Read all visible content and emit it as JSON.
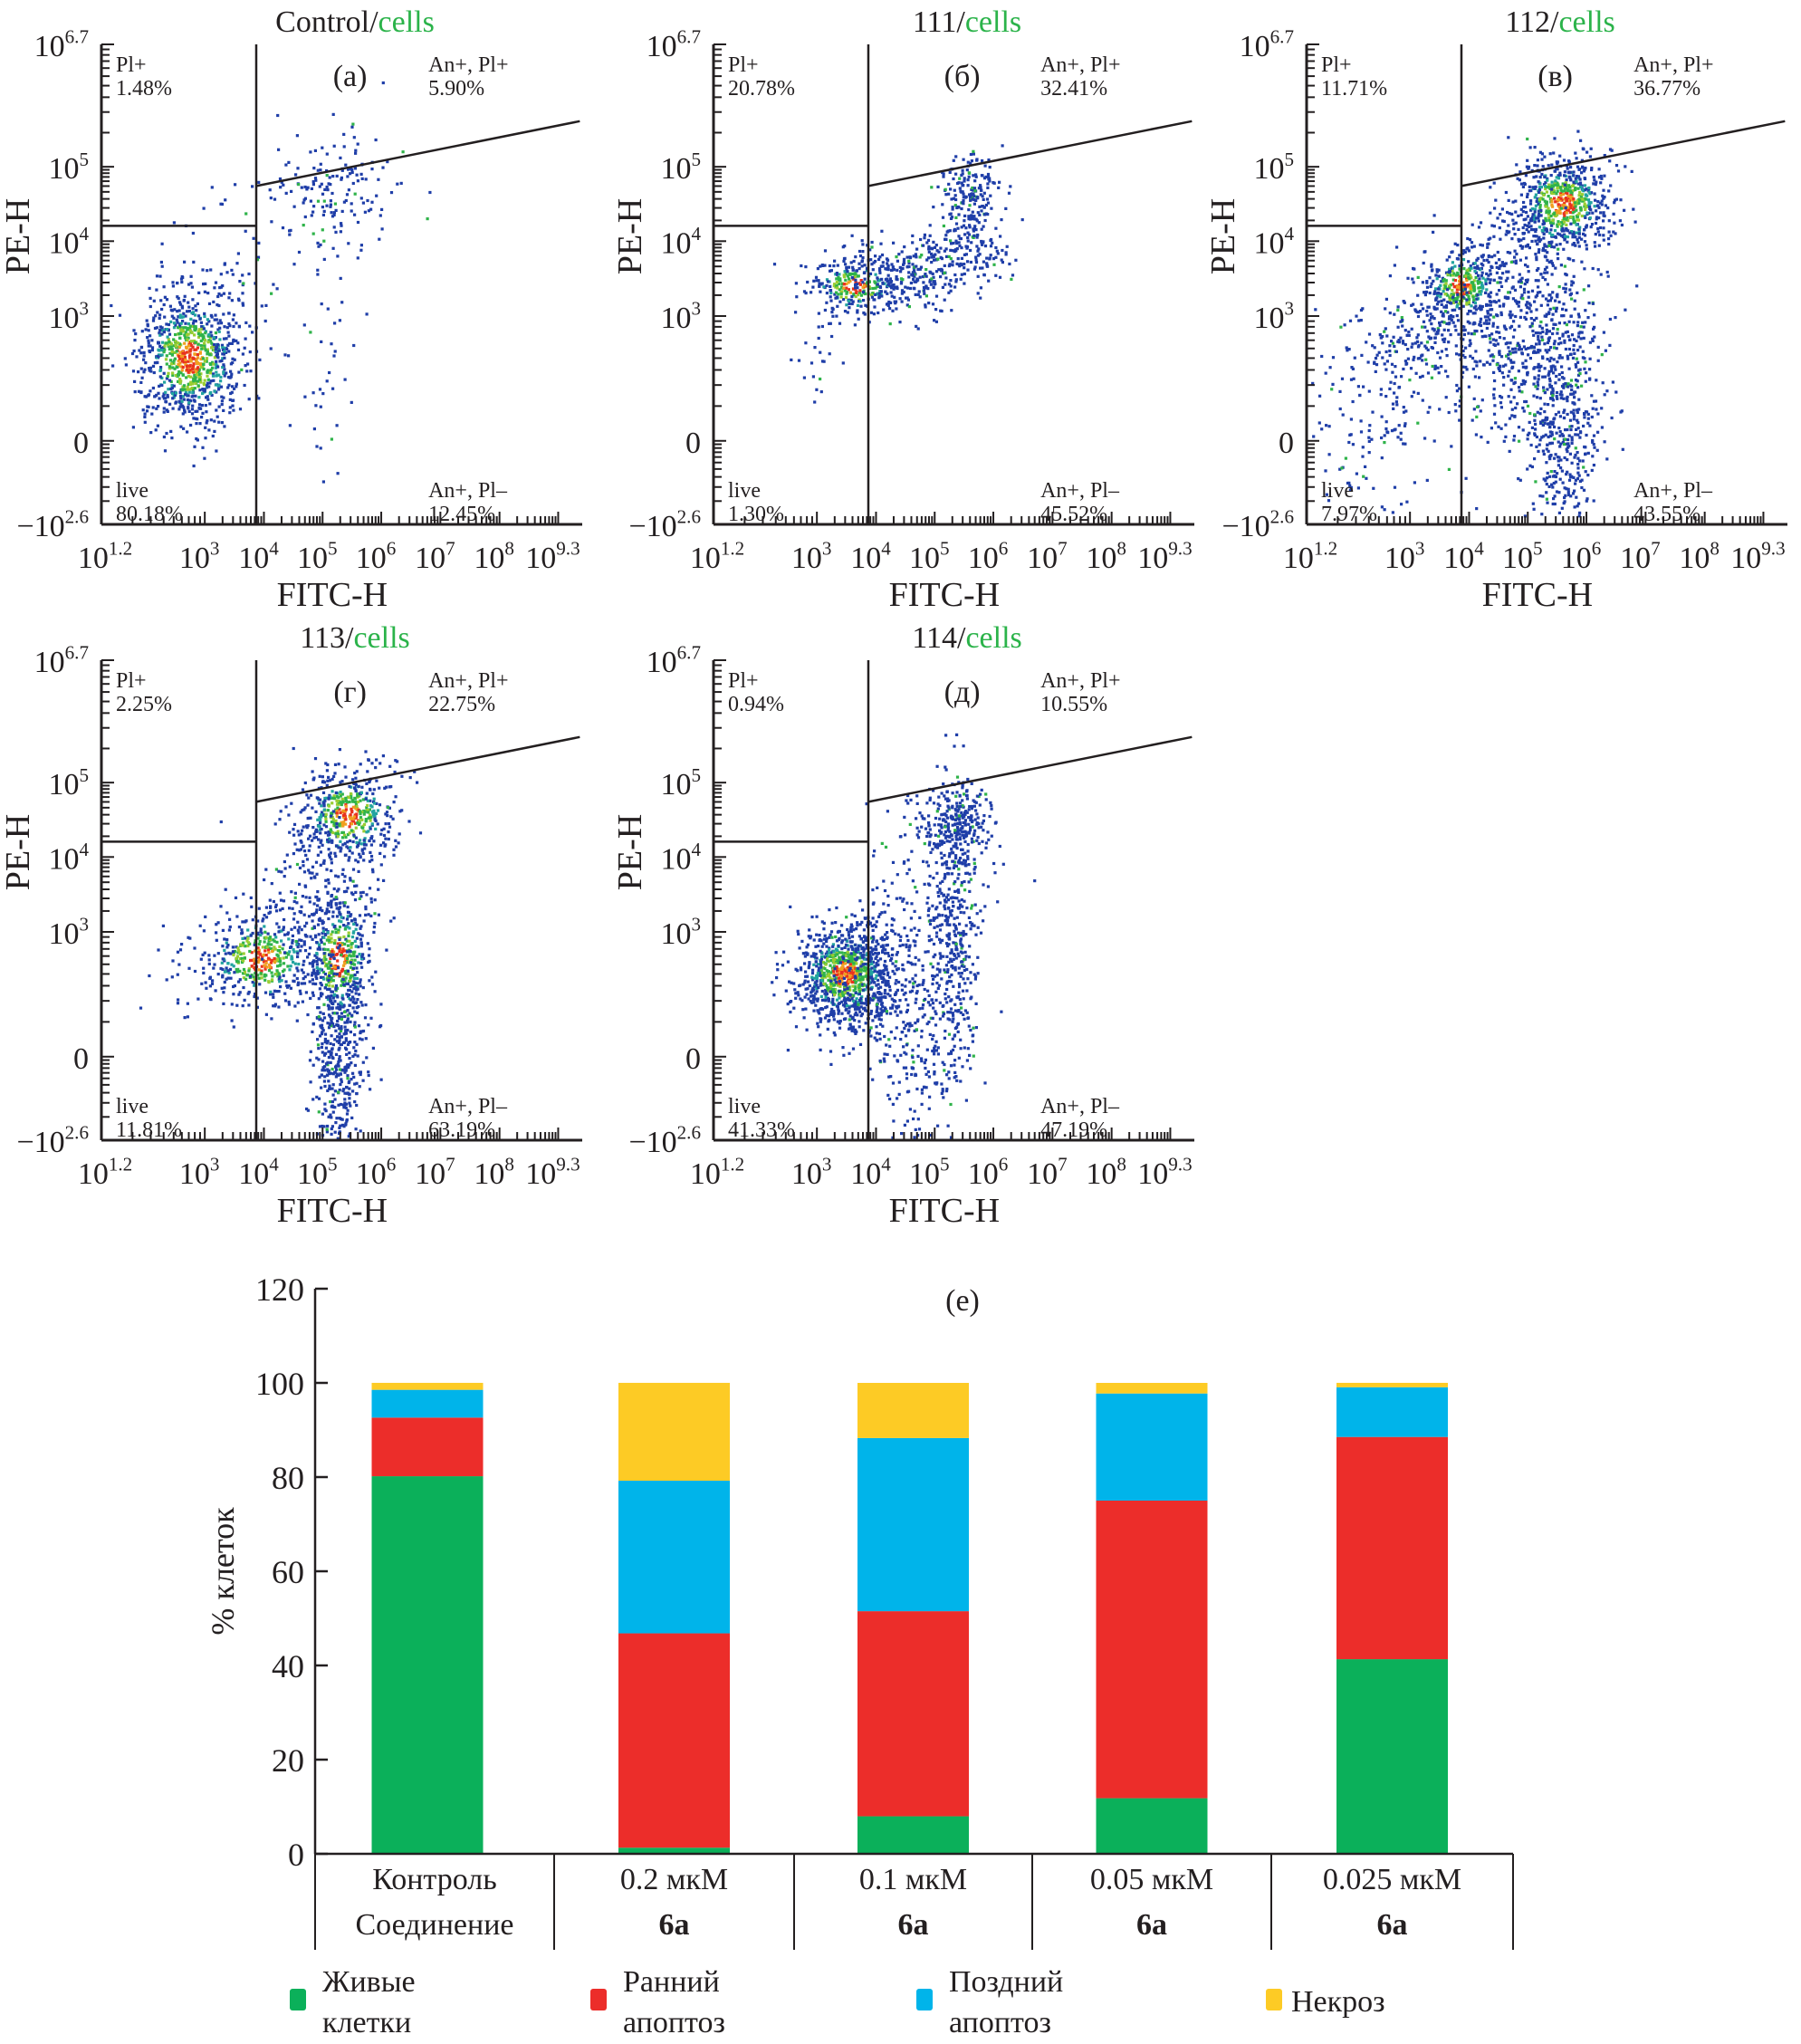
{
  "flow_panels": [
    {
      "id": "a",
      "title_prefix": "Control/",
      "title_suffix": "cells",
      "panel_label": "(a)",
      "quadrants": {
        "ul": {
          "label": "Pl+",
          "value": "1.48%"
        },
        "ur": {
          "label": "An+, Pl+",
          "value": "5.90%"
        },
        "ll": {
          "label": "live",
          "value": "80.18%"
        },
        "lr": {
          "label": "An+, Pl–",
          "value": "12.45%"
        }
      }
    },
    {
      "id": "b",
      "title_prefix": "111/",
      "title_suffix": "cells",
      "panel_label": "(б)",
      "quadrants": {
        "ul": {
          "label": "Pl+",
          "value": "20.78%"
        },
        "ur": {
          "label": "An+, Pl+",
          "value": "32.41%"
        },
        "ll": {
          "label": "live",
          "value": "1.30%"
        },
        "lr": {
          "label": "An+, Pl–",
          "value": "45.52%"
        }
      }
    },
    {
      "id": "v",
      "title_prefix": "112/",
      "title_suffix": "cells",
      "panel_label": "(в)",
      "quadrants": {
        "ul": {
          "label": "Pl+",
          "value": "11.71%"
        },
        "ur": {
          "label": "An+, Pl+",
          "value": "36.77%"
        },
        "ll": {
          "label": "live",
          "value": "7.97%"
        },
        "lr": {
          "label": "An+, Pl–",
          "value": "43.55%"
        }
      }
    },
    {
      "id": "g",
      "title_prefix": "113/",
      "title_suffix": "cells",
      "panel_label": "(г)",
      "quadrants": {
        "ul": {
          "label": "Pl+",
          "value": "2.25%"
        },
        "ur": {
          "label": "An+, Pl+",
          "value": "22.75%"
        },
        "ll": {
          "label": "live",
          "value": "11.81%"
        },
        "lr": {
          "label": "An+, Pl–",
          "value": "63.19%"
        }
      }
    },
    {
      "id": "d",
      "title_prefix": "114/",
      "title_suffix": "cells",
      "panel_label": "(д)",
      "quadrants": {
        "ul": {
          "label": "Pl+",
          "value": "0.94%"
        },
        "ur": {
          "label": "An+, Pl+",
          "value": "10.55%"
        },
        "ll": {
          "label": "live",
          "value": "41.33%"
        },
        "lr": {
          "label": "An+, Pl–",
          "value": "47.19%"
        }
      }
    }
  ],
  "flow_axes": {
    "xlabel": "FITC-H",
    "ylabel": "PE-H",
    "x_ticks": [
      {
        "base": "10",
        "exp": "1.2"
      },
      {
        "base": "10",
        "exp": "3"
      },
      {
        "base": "10",
        "exp": "4"
      },
      {
        "base": "10",
        "exp": "5"
      },
      {
        "base": "10",
        "exp": "6"
      },
      {
        "base": "10",
        "exp": "7"
      },
      {
        "base": "10",
        "exp": "8"
      },
      {
        "base": "10",
        "exp": "9.3"
      }
    ],
    "y_ticks": [
      {
        "base": "10",
        "exp": "6.7"
      },
      {
        "base": "10",
        "exp": "5"
      },
      {
        "base": "10",
        "exp": "4"
      },
      {
        "base": "10",
        "exp": "3"
      },
      {
        "base": "0",
        "exp": ""
      },
      {
        "base": "−10",
        "exp": "2.6"
      }
    ]
  },
  "colors": {
    "live": "#0bb05a",
    "early": "#ec2d2a",
    "late": "#00b4ea",
    "necrosis": "#fdcb25",
    "title_green": "#2bb34a",
    "axis": "#231f20"
  },
  "chart_data": {
    "type": "bar",
    "stacked": true,
    "title": "(е)",
    "xlabel": "",
    "ylabel": "% клеток",
    "ylim": [
      0,
      120
    ],
    "y_ticks": [
      0,
      20,
      40,
      60,
      80,
      100,
      120
    ],
    "categories": [
      "Контроль",
      "0.2 мкМ",
      "0.1 мкМ",
      "0.05 мкМ",
      "0.025 мкМ"
    ],
    "row_header": "Соединение",
    "compound_row": [
      "",
      "6а",
      "6а",
      "6а",
      "6а"
    ],
    "series": [
      {
        "name": "Живые клетки",
        "key": "live",
        "values": [
          80.18,
          1.3,
          7.97,
          11.81,
          41.33
        ]
      },
      {
        "name": "Ранний апоптоз",
        "key": "early",
        "values": [
          12.45,
          45.52,
          43.55,
          63.19,
          47.19
        ]
      },
      {
        "name": "Поздний апоптоз",
        "key": "late",
        "values": [
          5.9,
          32.41,
          36.77,
          22.75,
          10.55
        ]
      },
      {
        "name": "Некроз",
        "key": "necrosis",
        "values": [
          1.48,
          20.78,
          11.71,
          2.25,
          0.94
        ]
      }
    ],
    "legend": [
      {
        "key": "live",
        "line1": "Живые",
        "line2": "клетки"
      },
      {
        "key": "early",
        "line1": "Ранний",
        "line2": "апоптоз"
      },
      {
        "key": "late",
        "line1": "Поздний",
        "line2": "апоптоз"
      },
      {
        "key": "necrosis",
        "line1": "Некроз",
        "line2": ""
      }
    ],
    "legend_position": "bottom"
  }
}
